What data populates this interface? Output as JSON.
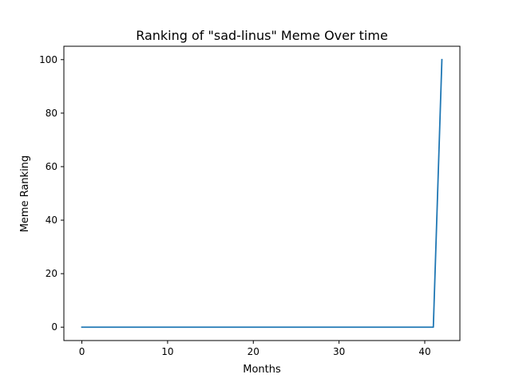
{
  "chart_data": {
    "type": "line",
    "title": "Ranking of \"sad-linus\" Meme Over time",
    "xlabel": "Months",
    "ylabel": "Meme Ranking",
    "xlim": [
      -2.1,
      44.1
    ],
    "ylim": [
      -5,
      105
    ],
    "xticks": [
      0,
      10,
      20,
      30,
      40
    ],
    "yticks": [
      0,
      20,
      40,
      60,
      80,
      100
    ],
    "grid": false,
    "legend": "none",
    "colors": {
      "line": "#1f77b4",
      "axes": "#000000",
      "background": "#ffffff"
    },
    "series": [
      {
        "x": [
          0,
          1,
          2,
          3,
          4,
          5,
          6,
          7,
          8,
          9,
          10,
          11,
          12,
          13,
          14,
          15,
          16,
          17,
          18,
          19,
          20,
          21,
          22,
          23,
          24,
          25,
          26,
          27,
          28,
          29,
          30,
          31,
          32,
          33,
          34,
          35,
          36,
          37,
          38,
          39,
          40,
          41,
          42
        ],
        "y": [
          0,
          0,
          0,
          0,
          0,
          0,
          0,
          0,
          0,
          0,
          0,
          0,
          0,
          0,
          0,
          0,
          0,
          0,
          0,
          0,
          0,
          0,
          0,
          0,
          0,
          0,
          0,
          0,
          0,
          0,
          0,
          0,
          0,
          0,
          0,
          0,
          0,
          0,
          0,
          0,
          0,
          0,
          100
        ]
      }
    ]
  }
}
